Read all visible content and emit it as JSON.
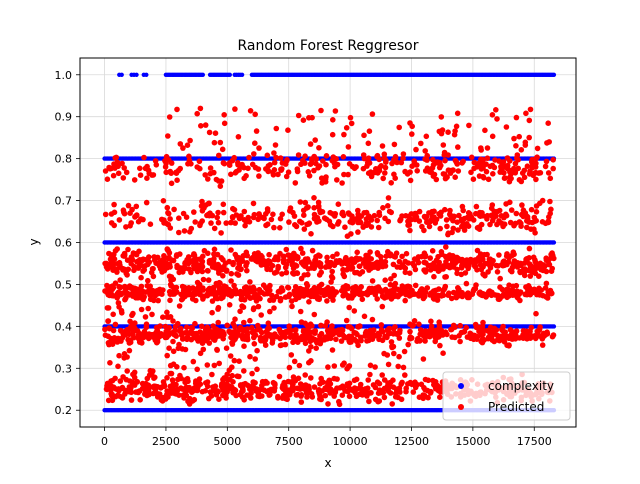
{
  "chart_data": {
    "type": "scatter",
    "title": "Random Forest Reggresor",
    "xlabel": "x",
    "ylabel": "y",
    "xlim": [
      -1000,
      19200
    ],
    "ylim": [
      0.16,
      1.04
    ],
    "x_ticks": [
      0,
      2500,
      5000,
      7500,
      10000,
      12500,
      15000,
      17500
    ],
    "y_ticks": [
      0.2,
      0.3,
      0.4,
      0.5,
      0.6,
      0.7,
      0.8,
      0.9,
      1.0
    ],
    "x_tick_labels": [
      "0",
      "2500",
      "5000",
      "7500",
      "10000",
      "12500",
      "15000",
      "17500"
    ],
    "y_tick_labels": [
      "0.2",
      "0.3",
      "0.4",
      "0.5",
      "0.6",
      "0.7",
      "0.8",
      "0.9",
      "1.0"
    ],
    "grid": true,
    "legend_position": "bottom-right",
    "n_samples": 18400,
    "series": [
      {
        "name": "complexity",
        "color": "#0000ff",
        "levels": [
          0.2,
          0.4,
          0.6,
          0.8,
          1.0
        ],
        "x_range": [
          0,
          18300
        ],
        "level_density": [
          {
            "level": 1.0,
            "x_segments": [
              [
                600,
                700
              ],
              [
                1100,
                1300
              ],
              [
                1600,
                1700
              ],
              [
                2500,
                4000
              ],
              [
                4300,
                5100
              ],
              [
                5300,
                5600
              ],
              [
                6000,
                18300
              ]
            ]
          },
          {
            "level": 0.8,
            "x_segments": [
              [
                0,
                18300
              ]
            ]
          },
          {
            "level": 0.6,
            "x_segments": [
              [
                0,
                18300
              ]
            ]
          },
          {
            "level": 0.4,
            "x_segments": [
              [
                0,
                18300
              ]
            ]
          },
          {
            "level": 0.2,
            "x_segments": [
              [
                0,
                18300
              ]
            ]
          }
        ]
      },
      {
        "name": "Predicted",
        "color": "#ff0000",
        "x_range": [
          0,
          18300
        ],
        "y_range": [
          0.19,
          0.93
        ],
        "bands": [
          {
            "center": 0.25,
            "spread": 0.05
          },
          {
            "center": 0.38,
            "spread": 0.04
          },
          {
            "center": 0.48,
            "spread": 0.03
          },
          {
            "center": 0.55,
            "spread": 0.05
          },
          {
            "center": 0.66,
            "spread": 0.06
          },
          {
            "center": 0.78,
            "spread": 0.06
          }
        ]
      }
    ]
  }
}
